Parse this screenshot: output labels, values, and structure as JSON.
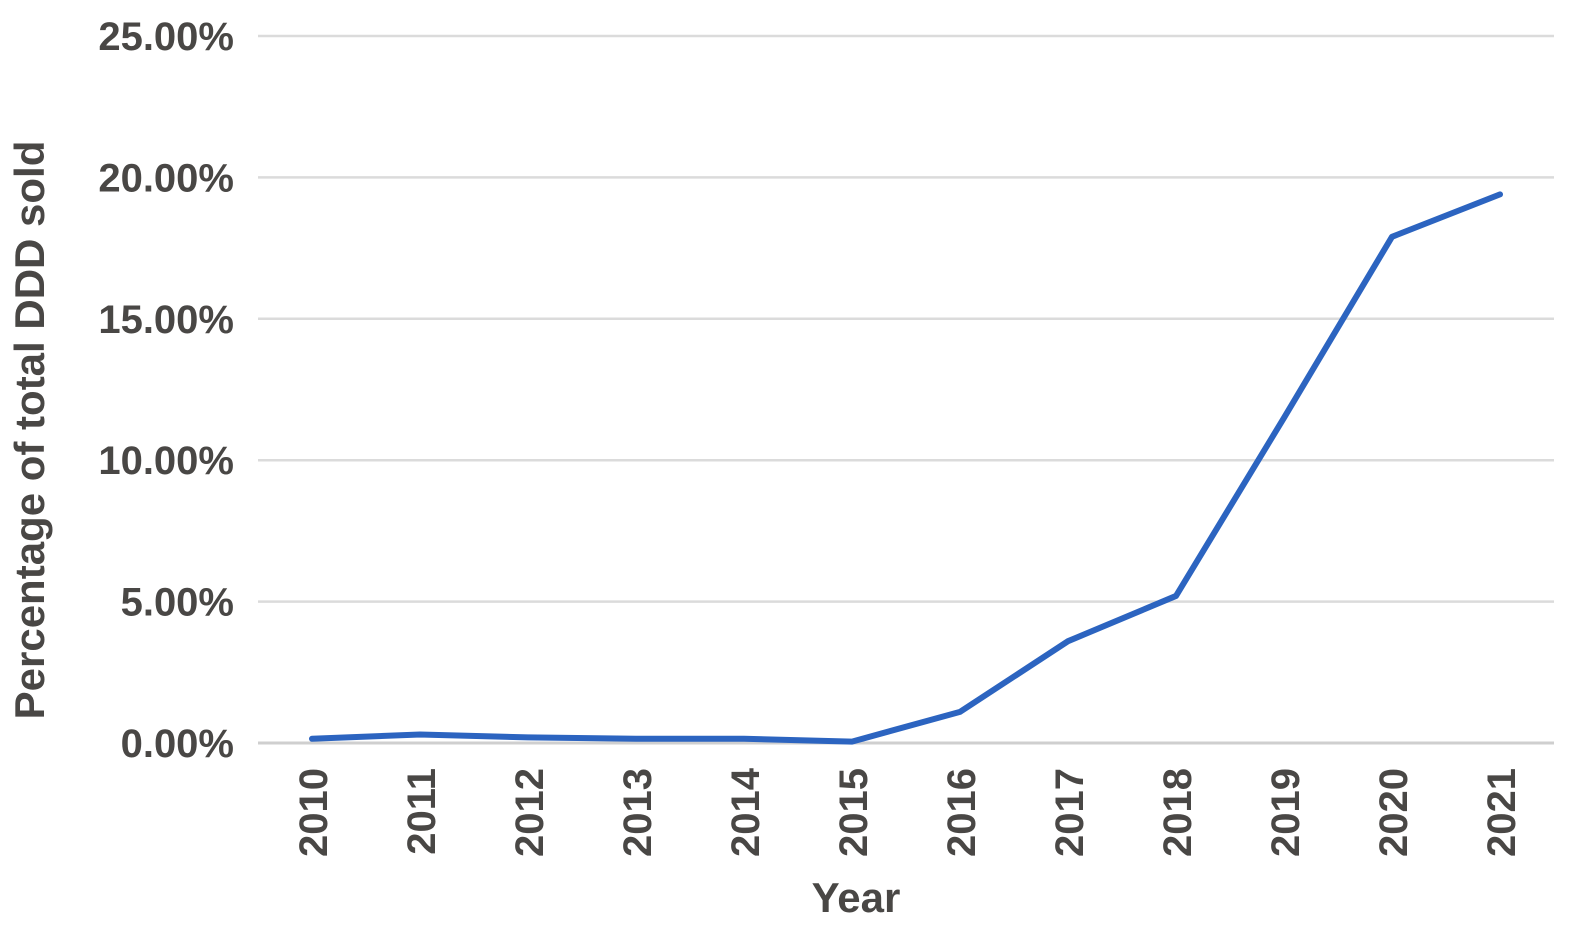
{
  "page": {
    "background": "#ffffff"
  },
  "chart_data": {
    "type": "line",
    "title": "",
    "xlabel": "Year",
    "ylabel": "Percentage of total DDD sold",
    "categories": [
      "2010",
      "2011",
      "2012",
      "2013",
      "2014",
      "2015",
      "2016",
      "2017",
      "2018",
      "2019",
      "2020",
      "2021"
    ],
    "series": [
      {
        "name": "Percentage of total DDD sold",
        "values": [
          0.15,
          0.3,
          0.2,
          0.15,
          0.15,
          0.05,
          1.1,
          3.6,
          5.2,
          11.5,
          17.9,
          19.4
        ]
      }
    ],
    "ylim": [
      0,
      25
    ],
    "ytick_step": 5,
    "ytick_labels": [
      "0.00%",
      "5.00%",
      "10.00%",
      "15.00%",
      "20.00%",
      "25.00%"
    ],
    "x_tick_rotation": -90,
    "grid": true,
    "legend_position": "none",
    "colors": {
      "line": "#2C64C0",
      "gridline": "#DBDBDB",
      "axis_line": "#CFCFCF",
      "text": "#494745"
    }
  }
}
